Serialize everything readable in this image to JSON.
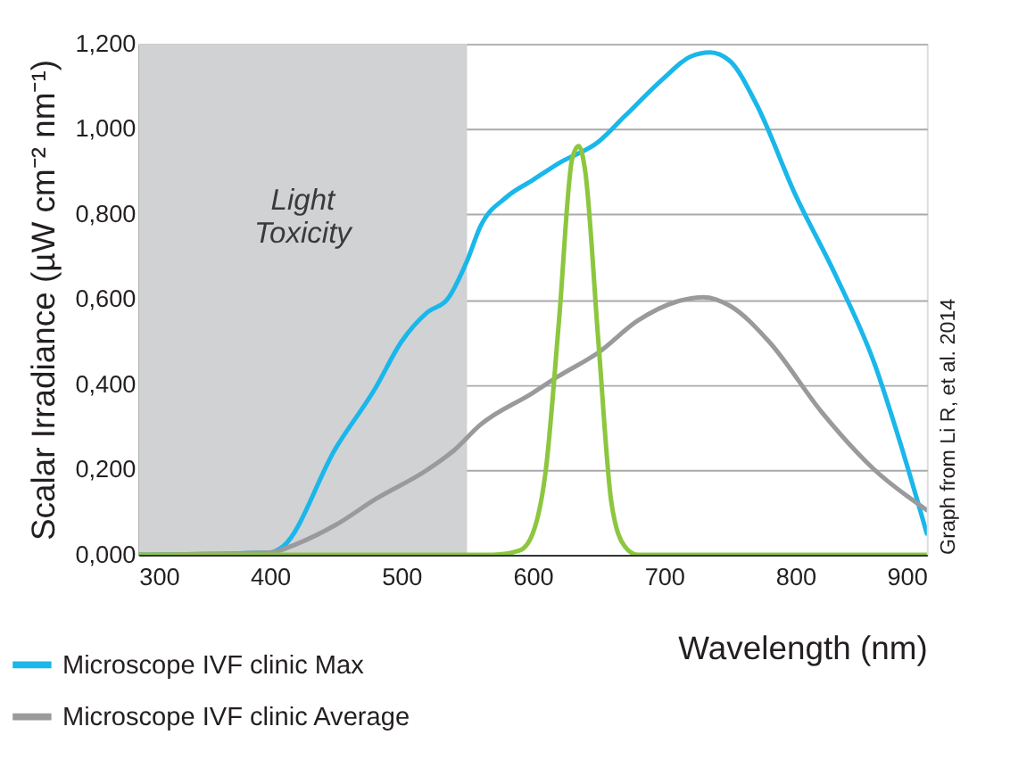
{
  "chart_data": {
    "type": "line",
    "xlabel": "Wavelength (nm)",
    "ylabel": "Scalar Irradiance (µW cm⁻² nm⁻¹)",
    "xlim": [
      300,
      900
    ],
    "xticks": [
      300,
      400,
      500,
      600,
      700,
      800,
      900
    ],
    "ylim": [
      0,
      1.2
    ],
    "yticks": [
      {
        "value": 0,
        "label": "0,000"
      },
      {
        "value": 0.2,
        "label": "0,200"
      },
      {
        "value": 0.4,
        "label": "0,400"
      },
      {
        "value": 0.6,
        "label": "0,600"
      },
      {
        "value": 0.8,
        "label": "0,800"
      },
      {
        "value": 1.0,
        "label": "1,000"
      },
      {
        "value": 1.2,
        "label": "1,200"
      }
    ],
    "grid": "y",
    "legend": "bottom left",
    "line_style": "solid",
    "marker": "none",
    "bands": [
      {
        "axis": "x",
        "from": 300,
        "to": 550,
        "label": "Light Toxicity",
        "color": "#d1d2d4"
      }
    ],
    "annotations": [
      "Graph from Li R, et al. 2014"
    ],
    "series": [
      {
        "name": "Microscope IVF clinic Max",
        "color": "#1ab7ea",
        "x": [
          300,
          400,
          410,
          450,
          480,
          500,
          520,
          535,
          550,
          560,
          580,
          600,
          620,
          650,
          670,
          700,
          720,
          735,
          750,
          770,
          800,
          830,
          860,
          880,
          900
        ],
        "values": [
          0,
          0.005,
          0.02,
          0.25,
          0.39,
          0.5,
          0.57,
          0.6,
          0.69,
          0.77,
          0.84,
          0.88,
          0.92,
          0.97,
          1.03,
          1.12,
          1.17,
          1.18,
          1.16,
          1.06,
          0.845,
          0.66,
          0.45,
          0.26,
          0.05
        ]
      },
      {
        "name": "Microscope IVF clinic Average",
        "color": "#9a9a9c",
        "x": [
          300,
          400,
          420,
          450,
          480,
          520,
          540,
          560,
          600,
          620,
          650,
          680,
          710,
          730,
          750,
          780,
          820,
          860,
          900
        ],
        "values": [
          0,
          0.005,
          0.025,
          0.07,
          0.13,
          0.2,
          0.245,
          0.305,
          0.38,
          0.42,
          0.475,
          0.55,
          0.595,
          0.605,
          0.585,
          0.5,
          0.335,
          0.2,
          0.105
        ]
      },
      {
        "color": "#8dc63f",
        "x": [
          300,
          570,
          590,
          600,
          610,
          620,
          630,
          635,
          640,
          650,
          660,
          670,
          680,
          900
        ],
        "values": [
          0,
          0,
          0.01,
          0.05,
          0.2,
          0.55,
          0.93,
          0.96,
          0.9,
          0.5,
          0.12,
          0.02,
          0,
          0
        ]
      }
    ]
  }
}
